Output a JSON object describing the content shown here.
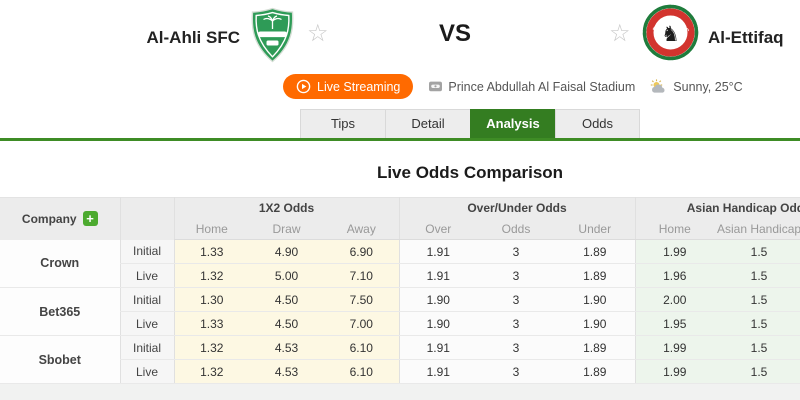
{
  "match_header": {
    "home_team": "Al-Ahli SFC",
    "away_team": "Al-Ettifaq",
    "away_logo_text": "ETTIFAQ F.C",
    "vs": "VS",
    "live_streaming": "Live Streaming",
    "venue": "Prince Abdullah Al Faisal Stadium",
    "weather": "Sunny, 25°C"
  },
  "tabs": [
    {
      "label": "Tips",
      "active": false
    },
    {
      "label": "Detail",
      "active": false
    },
    {
      "label": "Analysis",
      "active": true
    },
    {
      "label": "Odds",
      "active": false
    }
  ],
  "analysis": {
    "title": "Live Odds Comparison"
  },
  "odds_table": {
    "company_header": "Company",
    "row_types": [
      "Initial",
      "Live"
    ],
    "groups": [
      {
        "label": "1X2 Odds",
        "columns": [
          "Home",
          "Draw",
          "Away"
        ],
        "style": "yellow",
        "clipped": false
      },
      {
        "label": "Over/Under Odds",
        "columns": [
          "Over",
          "Odds",
          "Under"
        ],
        "style": "white",
        "clipped": false
      },
      {
        "label": "Asian Handicap Odds",
        "columns": [
          "Home",
          "Asian Handicap"
        ],
        "style": "green",
        "clipped": true
      }
    ],
    "companies": [
      {
        "name": "Crown",
        "rows": [
          {
            "type": "Initial",
            "values": [
              [
                "1.33",
                "4.90",
                "6.90"
              ],
              [
                "1.91",
                "3",
                "1.89"
              ],
              [
                "1.99",
                "1.5"
              ]
            ]
          },
          {
            "type": "Live",
            "values": [
              [
                "1.32",
                "5.00",
                "7.10"
              ],
              [
                "1.91",
                "3",
                "1.89"
              ],
              [
                "1.96",
                "1.5"
              ]
            ]
          }
        ]
      },
      {
        "name": "Bet365",
        "rows": [
          {
            "type": "Initial",
            "values": [
              [
                "1.30",
                "4.50",
                "7.50"
              ],
              [
                "1.90",
                "3",
                "1.90"
              ],
              [
                "2.00",
                "1.5"
              ]
            ]
          },
          {
            "type": "Live",
            "values": [
              [
                "1.33",
                "4.50",
                "7.00"
              ],
              [
                "1.90",
                "3",
                "1.90"
              ],
              [
                "1.95",
                "1.5"
              ]
            ]
          }
        ]
      },
      {
        "name": "Sbobet",
        "rows": [
          {
            "type": "Initial",
            "values": [
              [
                "1.32",
                "4.53",
                "6.10"
              ],
              [
                "1.91",
                "3",
                "1.89"
              ],
              [
                "1.99",
                "1.5"
              ]
            ]
          },
          {
            "type": "Live",
            "values": [
              [
                "1.32",
                "4.53",
                "6.10"
              ],
              [
                "1.91",
                "3",
                "1.89"
              ],
              [
                "1.99",
                "1.5"
              ]
            ]
          }
        ]
      }
    ]
  },
  "colors": {
    "accent_green": "#347d21",
    "streaming_orange": "#ff6a00",
    "x12_cell": "#fdf8e3",
    "over_under_cell": "#fbfbfb",
    "asian_handicap_cell": "#edf5ec",
    "home_logo_green": "#2e9b57",
    "away_logo_green": "#1f7c3c",
    "away_logo_red": "#d2342e",
    "add_button_green": "#4caa2f"
  }
}
